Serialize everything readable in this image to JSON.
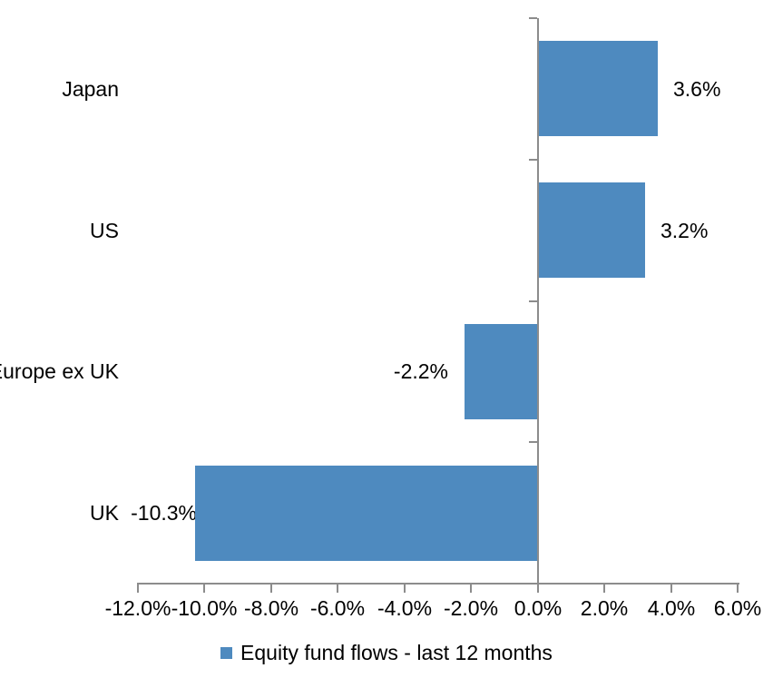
{
  "chart_data": {
    "type": "bar",
    "orientation": "horizontal",
    "title": "",
    "categories": [
      "Japan",
      "US",
      "Europe ex UK",
      "UK"
    ],
    "series": [
      {
        "name": "Equity fund flows - last 12 months",
        "values": [
          3.6,
          3.2,
          -2.2,
          -10.3
        ]
      }
    ],
    "data_labels": [
      "3.6%",
      "3.2%",
      "-2.2%",
      "-10.3%"
    ],
    "xlim": [
      -12,
      6
    ],
    "x_ticks": [
      {
        "value": -12,
        "label": "-12.0%"
      },
      {
        "value": -10,
        "label": "-10.0%"
      },
      {
        "value": -8,
        "label": "-8.0%"
      },
      {
        "value": -6,
        "label": "-6.0%"
      },
      {
        "value": -4,
        "label": "-4.0%"
      },
      {
        "value": -2,
        "label": "-2.0%"
      },
      {
        "value": 0,
        "label": "0.0%"
      },
      {
        "value": 2,
        "label": "2.0%"
      },
      {
        "value": 4,
        "label": "4.0%"
      },
      {
        "value": 6,
        "label": "6.0%"
      }
    ],
    "grid": false,
    "legend_position": "bottom",
    "colors": {
      "bar": "#4E8ABF",
      "axis": "#8C8C8C",
      "text": "#000000",
      "background": "#FFFFFF"
    }
  },
  "legend": {
    "label": "Equity fund flows - last 12 months"
  }
}
